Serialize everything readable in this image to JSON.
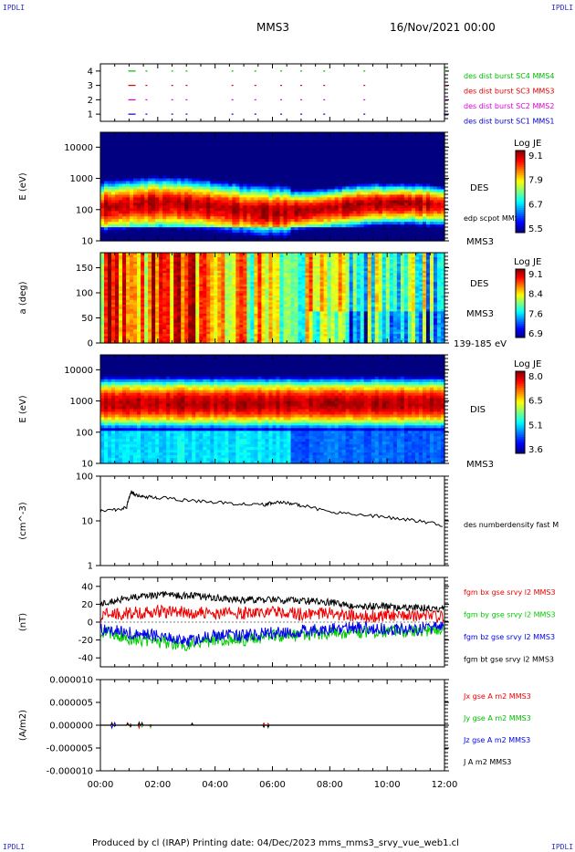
{
  "corner_label": "IPDLI",
  "header": {
    "spacecraft": "MMS3",
    "date": "16/Nov/2021 00:00"
  },
  "footer": {
    "text": "Produced by cl (IRAP)   Printing date: 04/Dec/2023   mms_mms3_srvy_vue_web1.cl"
  },
  "x_ticks": [
    "00:00",
    "02:00",
    "04:00",
    "06:00",
    "08:00",
    "10:00",
    "12:00"
  ],
  "chart_data": [
    {
      "type": "scatter",
      "panel": "availability",
      "yticks": [
        "1",
        "2",
        "3",
        "4"
      ],
      "ylim": [
        0.5,
        4.5
      ],
      "legend": [
        {
          "label": "des dist burst SC1 MMS1",
          "color": "#0000cc",
          "row": 1
        },
        {
          "label": "des dist burst SC2 MMS2",
          "color": "#dd00dd",
          "row": 2
        },
        {
          "label": "des dist burst SC3 MMS3",
          "color": "#dd0000",
          "row": 3
        },
        {
          "label": "des dist burst SC4 MMS4",
          "color": "#00bb00",
          "row": 4
        }
      ],
      "order": [
        4,
        3,
        2,
        1
      ]
    },
    {
      "type": "heatmap",
      "panel": "des-energy",
      "ylabel": "E (eV)",
      "yscale": "log",
      "yticks": [
        "10",
        "100",
        "1000",
        "10000"
      ],
      "ylim": [
        10,
        30000
      ],
      "right_labels": [
        "DES",
        "edp scpot MMS3",
        "MMS3"
      ],
      "colorbar": {
        "title": "Log JE",
        "ticks": [
          "9.1",
          "7.9",
          "6.7",
          "5.5"
        ],
        "range": [
          5.5,
          9.1
        ]
      }
    },
    {
      "type": "heatmap",
      "panel": "des-pitch",
      "ylabel": "a (deg)",
      "yticks": [
        "0",
        "50",
        "100",
        "150"
      ],
      "ylim": [
        0,
        180
      ],
      "right_labels": [
        "DES",
        "MMS3",
        "139-185 eV"
      ],
      "colorbar": {
        "title": "Log JE",
        "ticks": [
          "9.1",
          "8.4",
          "7.6",
          "6.9"
        ],
        "range": [
          6.9,
          9.1
        ]
      }
    },
    {
      "type": "heatmap",
      "panel": "dis-energy",
      "ylabel": "E (eV)",
      "yscale": "log",
      "yticks": [
        "10",
        "100",
        "1000",
        "10000"
      ],
      "ylim": [
        10,
        30000
      ],
      "right_labels": [
        "DIS",
        "MMS3"
      ],
      "colorbar": {
        "title": "Log JE",
        "ticks": [
          "8.0",
          "6.5",
          "5.1",
          "3.6"
        ],
        "range": [
          3.6,
          8.0
        ]
      }
    },
    {
      "type": "line",
      "panel": "density",
      "ylabel": "(cm^-3)",
      "yscale": "log",
      "yticks": [
        "1",
        "10",
        "100"
      ],
      "ylim": [
        1,
        100
      ],
      "legend": [
        {
          "label": "des numberdensity fast M",
          "color": "#000000"
        }
      ],
      "x": [
        "00:00",
        "00:30",
        "00:55",
        "01:05",
        "01:15",
        "01:30",
        "02:00",
        "03:00",
        "04:00",
        "05:00",
        "05:45",
        "06:00",
        "06:30",
        "07:00",
        "08:00",
        "09:00",
        "10:00",
        "11:00",
        "12:00"
      ],
      "values": [
        17,
        18,
        20,
        45,
        38,
        35,
        33,
        29,
        26,
        24,
        23,
        26,
        25,
        22,
        16,
        14,
        12,
        10,
        8
      ]
    },
    {
      "type": "line",
      "panel": "magnetic-field",
      "ylabel": "(nT)",
      "yticks": [
        "-40",
        "-20",
        "0",
        "20",
        "40"
      ],
      "ylim": [
        -50,
        50
      ],
      "x": [
        "00:00",
        "01:00",
        "02:00",
        "03:00",
        "04:00",
        "05:00",
        "06:00",
        "07:00",
        "08:00",
        "09:00",
        "10:00",
        "11:00",
        "12:00"
      ],
      "series": [
        {
          "name": "fgm bx gse srvy l2 MMS3",
          "color": "#ee0000",
          "values": [
            8,
            10,
            12,
            11,
            10,
            10,
            12,
            9,
            10,
            6,
            8,
            7,
            6
          ]
        },
        {
          "name": "fgm by gse srvy l2 MMS3",
          "color": "#00cc00",
          "values": [
            -10,
            -18,
            -22,
            -25,
            -20,
            -20,
            -15,
            -15,
            -12,
            -12,
            -10,
            -10,
            -8
          ]
        },
        {
          "name": "fgm bz gse srvy l2 MMS3",
          "color": "#0000ee",
          "values": [
            -8,
            -12,
            -15,
            -22,
            -15,
            -15,
            -12,
            -10,
            -8,
            -6,
            -8,
            -8,
            -5
          ]
        },
        {
          "name": "fgm bt gse srvy l2 MMS3",
          "color": "#000000",
          "values": [
            20,
            28,
            30,
            30,
            27,
            25,
            25,
            24,
            22,
            18,
            17,
            16,
            15
          ]
        }
      ]
    },
    {
      "type": "line",
      "panel": "current-density",
      "ylabel": "(A/m2)",
      "yticks": [
        "0.000010",
        "0.000005",
        "0.000000",
        "-0.000005",
        "-0.000010"
      ],
      "ylim": [
        -1e-05,
        1e-05
      ],
      "x": [
        "00:00",
        "12:00"
      ],
      "series": [
        {
          "name": "Jx gse A m2 MMS3",
          "color": "#ee0000",
          "values": [
            0,
            0
          ]
        },
        {
          "name": "Jy gse A m2 MMS3",
          "color": "#00bb00",
          "values": [
            0,
            0
          ]
        },
        {
          "name": "Jz gse A m2 MMS3",
          "color": "#0000ee",
          "values": [
            0,
            0
          ]
        },
        {
          "name": "J A m2 MMS3",
          "color": "#000000",
          "values": [
            0,
            0
          ]
        }
      ]
    }
  ]
}
